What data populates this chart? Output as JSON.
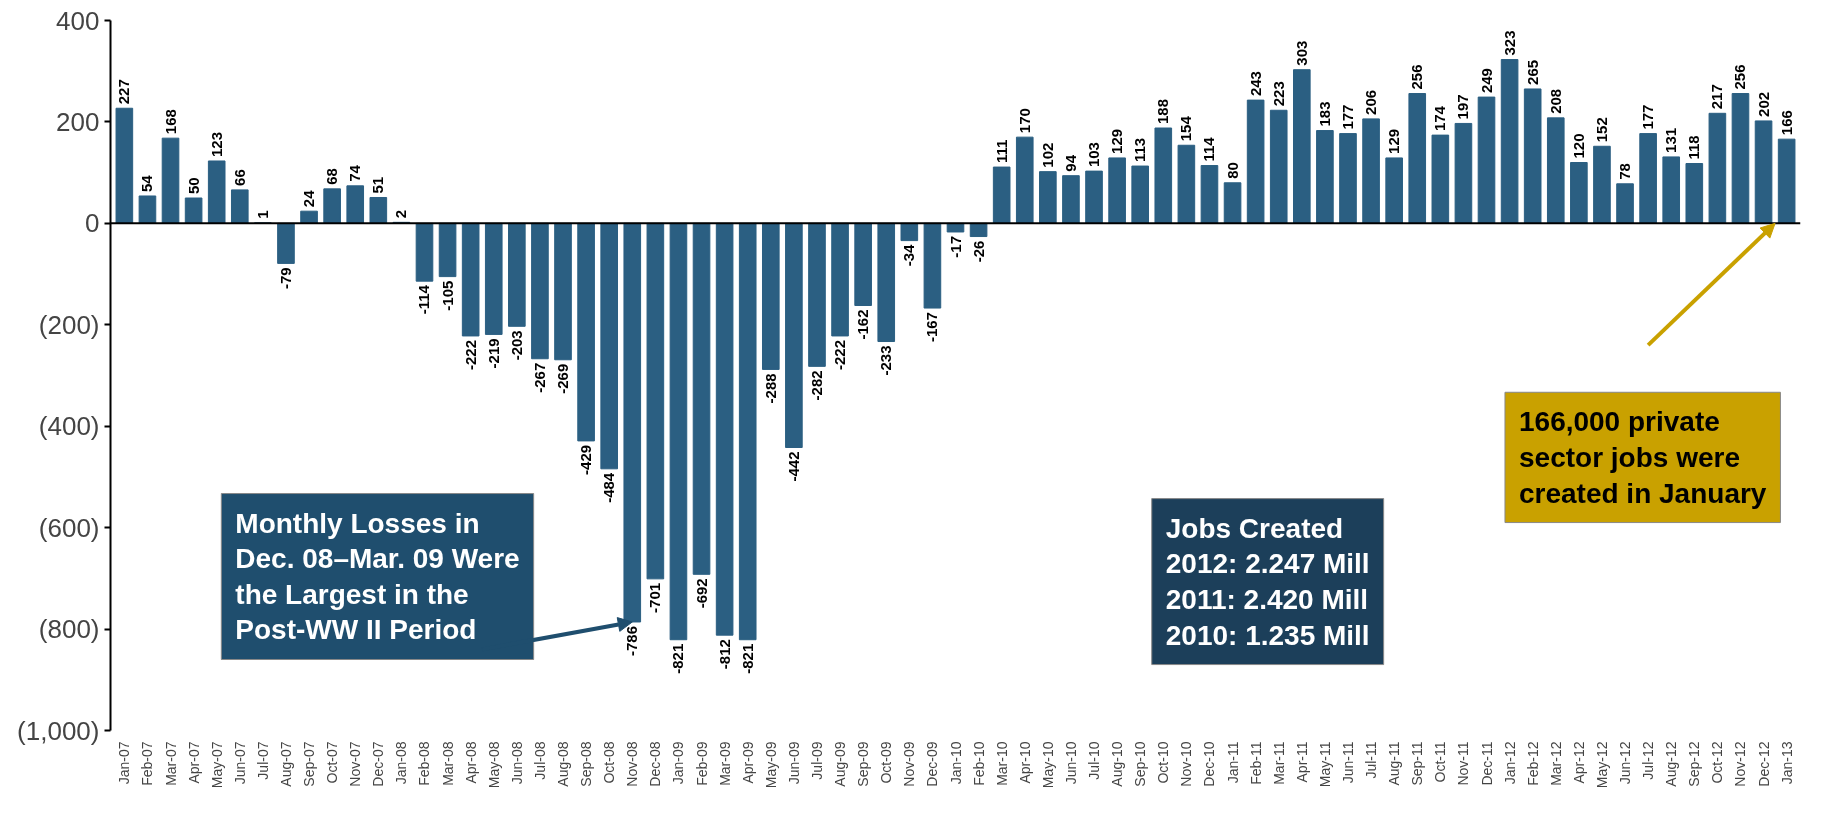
{
  "chart_data": {
    "type": "bar",
    "categories": [
      "Jan-07",
      "Feb-07",
      "Mar-07",
      "Apr-07",
      "May-07",
      "Jun-07",
      "Jul-07",
      "Aug-07",
      "Sep-07",
      "Oct-07",
      "Nov-07",
      "Dec-07",
      "Jan-08",
      "Feb-08",
      "Mar-08",
      "Apr-08",
      "May-08",
      "Jun-08",
      "Jul-08",
      "Aug-08",
      "Sep-08",
      "Oct-08",
      "Nov-08",
      "Dec-08",
      "Jan-09",
      "Feb-09",
      "Mar-09",
      "Apr-09",
      "May-09",
      "Jun-09",
      "Jul-09",
      "Aug-09",
      "Sep-09",
      "Oct-09",
      "Nov-09",
      "Dec-09",
      "Jan-10",
      "Feb-10",
      "Mar-10",
      "Apr-10",
      "May-10",
      "Jun-10",
      "Jul-10",
      "Aug-10",
      "Sep-10",
      "Oct-10",
      "Nov-10",
      "Dec-10",
      "Jan-11",
      "Feb-11",
      "Mar-11",
      "Apr-11",
      "May-11",
      "Jun-11",
      "Jul-11",
      "Aug-11",
      "Sep-11",
      "Oct-11",
      "Nov-11",
      "Dec-11",
      "Jan-12",
      "Feb-12",
      "Mar-12",
      "Apr-12",
      "May-12",
      "Jun-12",
      "Jul-12",
      "Aug-12",
      "Sep-12",
      "Oct-12",
      "Nov-12",
      "Dec-12",
      "Jan-13"
    ],
    "values": [
      227,
      54,
      168,
      50,
      123,
      66,
      1,
      -79,
      24,
      68,
      74,
      51,
      2,
      -114,
      -105,
      -222,
      -219,
      -203,
      -267,
      -269,
      -429,
      -484,
      -786,
      -701,
      -821,
      -692,
      -812,
      -821,
      -288,
      -442,
      -282,
      -222,
      -162,
      -233,
      -34,
      -167,
      -17,
      -26,
      111,
      170,
      102,
      94,
      103,
      129,
      113,
      188,
      154,
      114,
      80,
      243,
      223,
      303,
      183,
      177,
      206,
      129,
      256,
      174,
      197,
      249,
      323,
      265,
      208,
      120,
      152,
      78,
      177,
      131,
      118,
      217,
      256,
      202,
      166
    ],
    "color": "#2b5f82",
    "ylim": [
      -1000,
      400
    ],
    "yticks": [
      400,
      200,
      0,
      {
        "value": -200,
        "label": "(200)"
      },
      {
        "value": -400,
        "label": "(400)"
      },
      {
        "value": -600,
        "label": "(600)"
      },
      {
        "value": -800,
        "label": "(800)"
      },
      {
        "value": -1000,
        "label": "(1,000)"
      }
    ],
    "data_labels": true,
    "annotations": [
      {
        "text": "Monthly Losses in\nDec. 08–Mar. 09 Were\nthe Largest in the\nPost-WW II Period",
        "x": "Nov-08",
        "y": -786
      },
      {
        "text": "Jobs Created\n2012: 2.247 Mill\n2011: 2.420 Mill\n2010: 1.235 Mill"
      },
      "166,000 private\nsector jobs were\ncreated in January"
    ]
  }
}
